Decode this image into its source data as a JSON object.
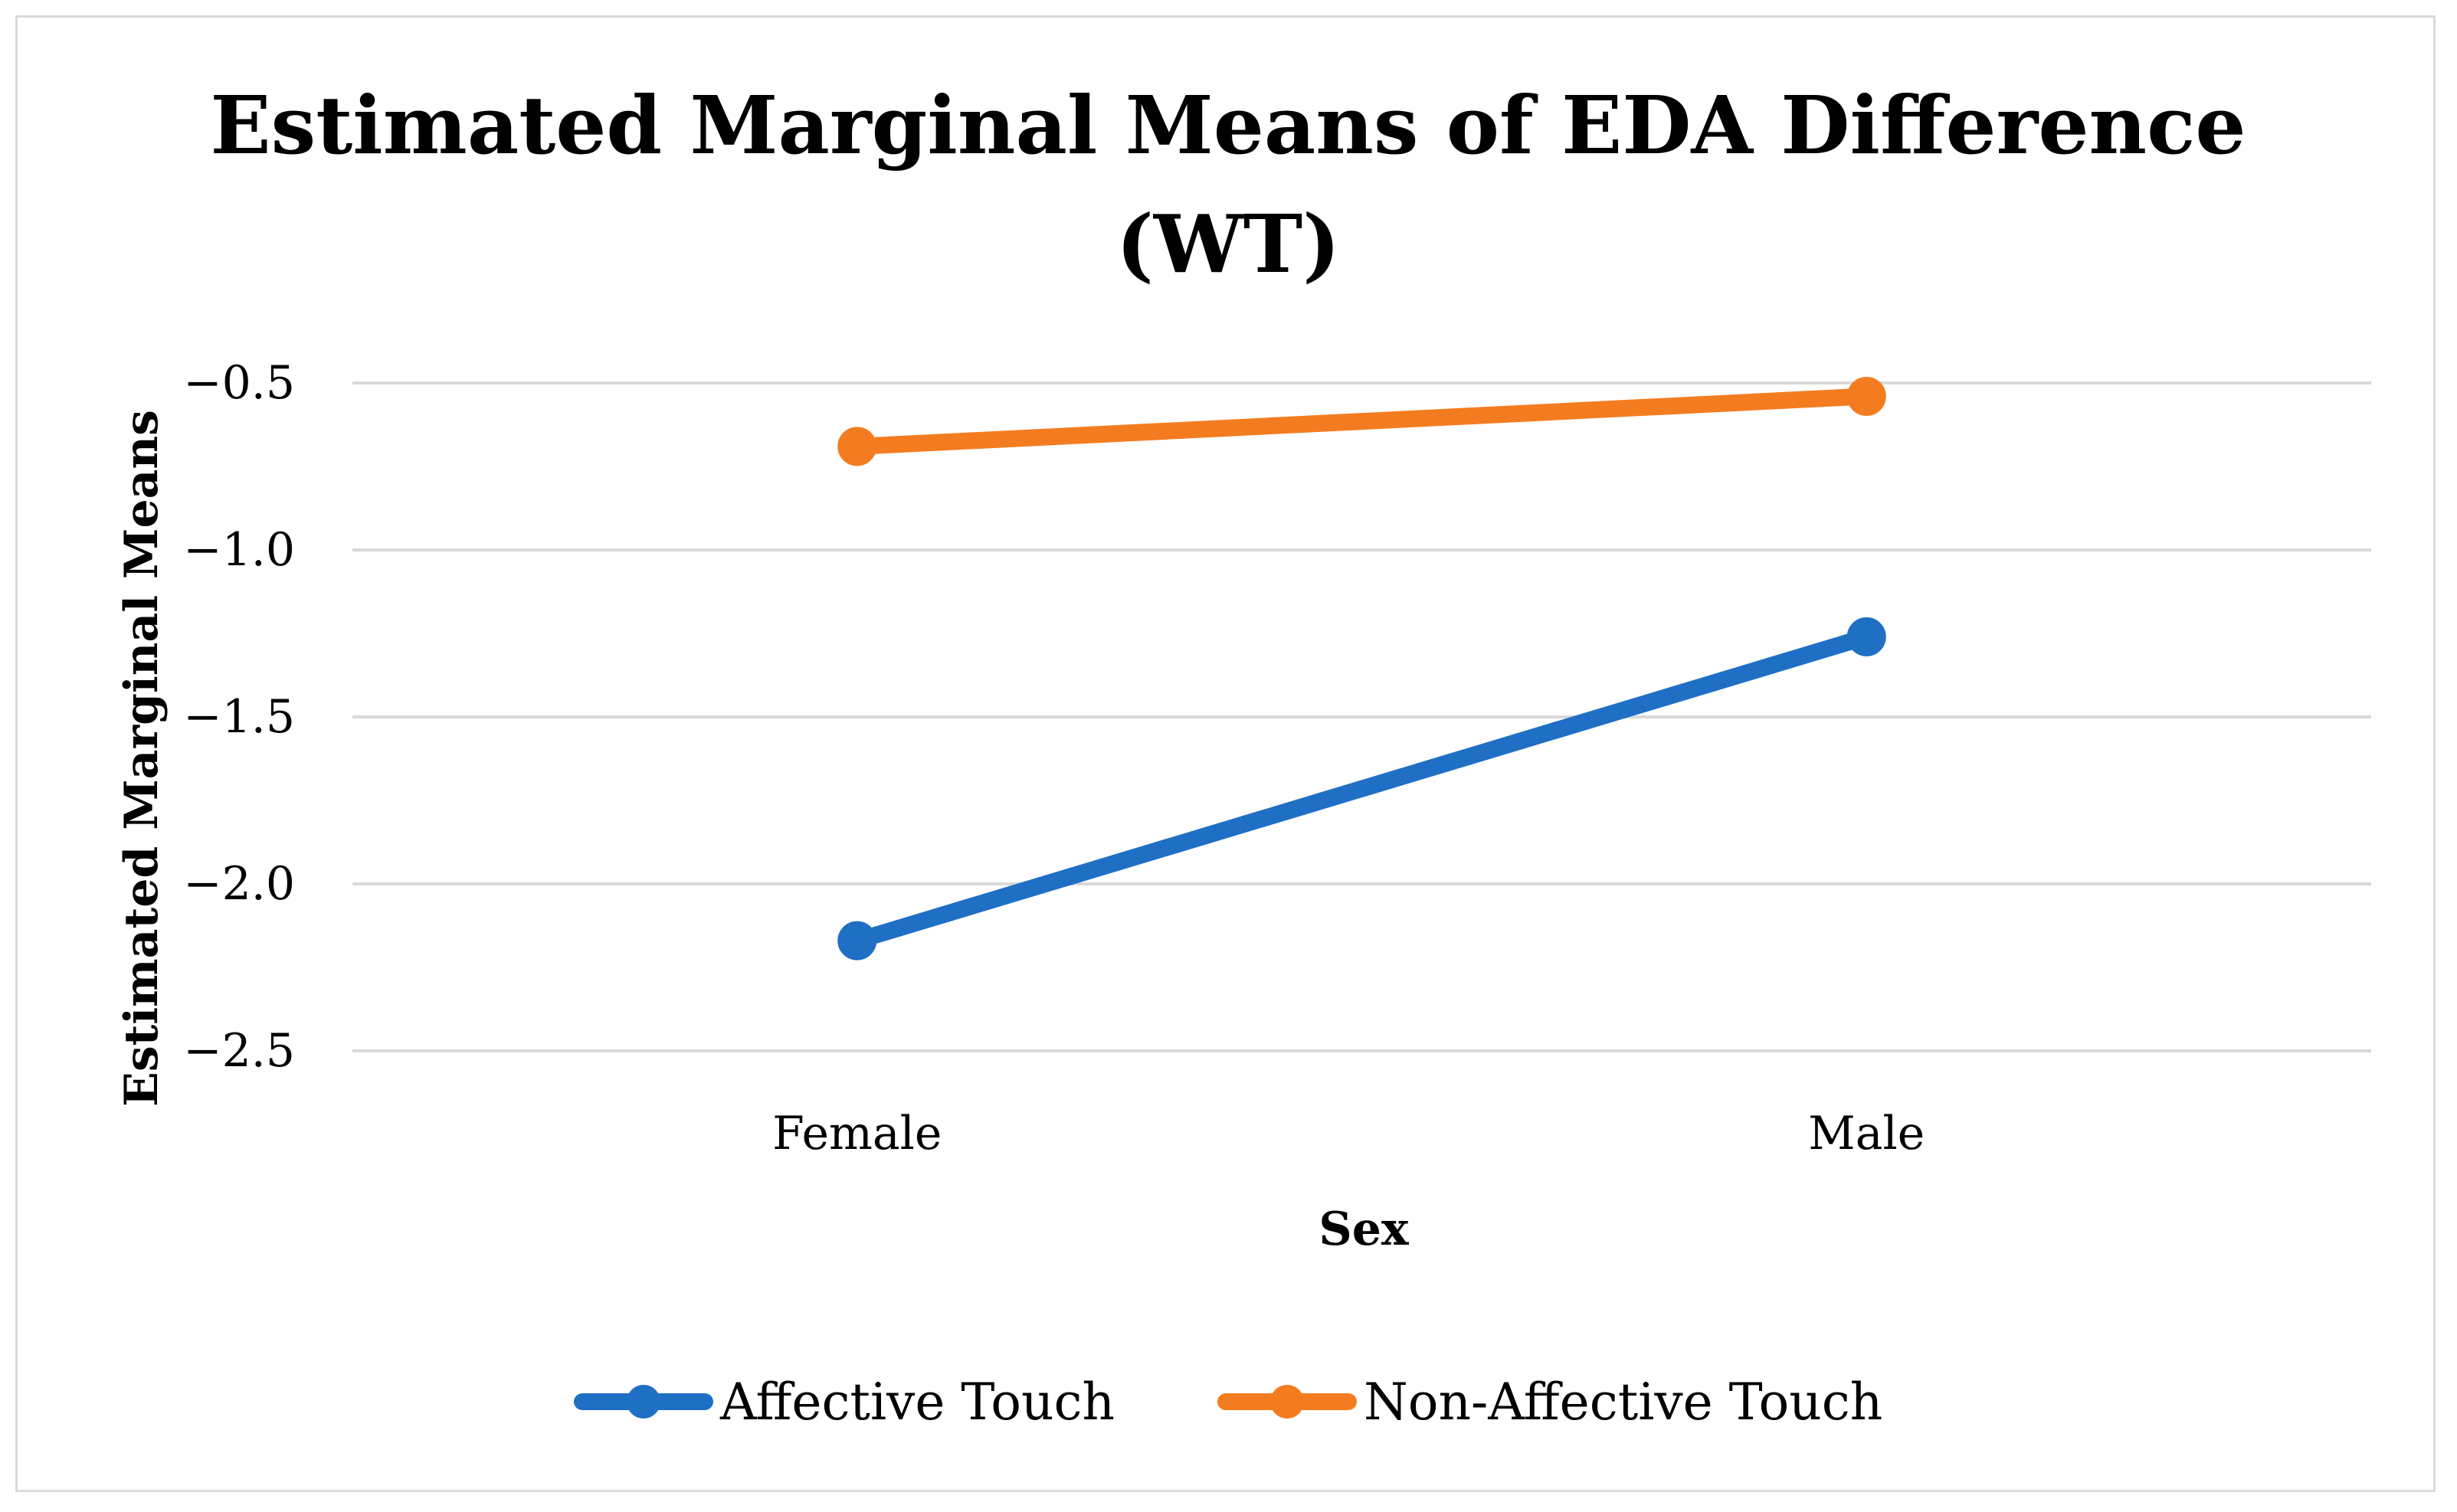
{
  "colors": {
    "affective": "#1f6fc5",
    "non_affective": "#f47c20",
    "grid": "#d9d9d9"
  },
  "chart_data": {
    "type": "line",
    "title_lines": [
      "Estimated Marginal Means of EDA Difference",
      "(WT)"
    ],
    "xlabel": "Sex",
    "ylabel": "Estimated Marginal Means",
    "categories": [
      "Female",
      "Male"
    ],
    "ylim": [
      -2.5,
      -0.5
    ],
    "yticks": [
      -0.5,
      -1.0,
      -1.5,
      -2.0,
      -2.5
    ],
    "ytick_labels": [
      "−0.5",
      "−1.0",
      "−1.5",
      "−2.0",
      "−2.5"
    ],
    "grid": true,
    "legend_position": "bottom",
    "series": [
      {
        "name": "Affective Touch",
        "color": "#1f6fc5",
        "values": [
          -2.17,
          -1.26
        ]
      },
      {
        "name": "Non-Affective Touch",
        "color": "#f47c20",
        "values": [
          -0.69,
          -0.54
        ]
      }
    ]
  }
}
